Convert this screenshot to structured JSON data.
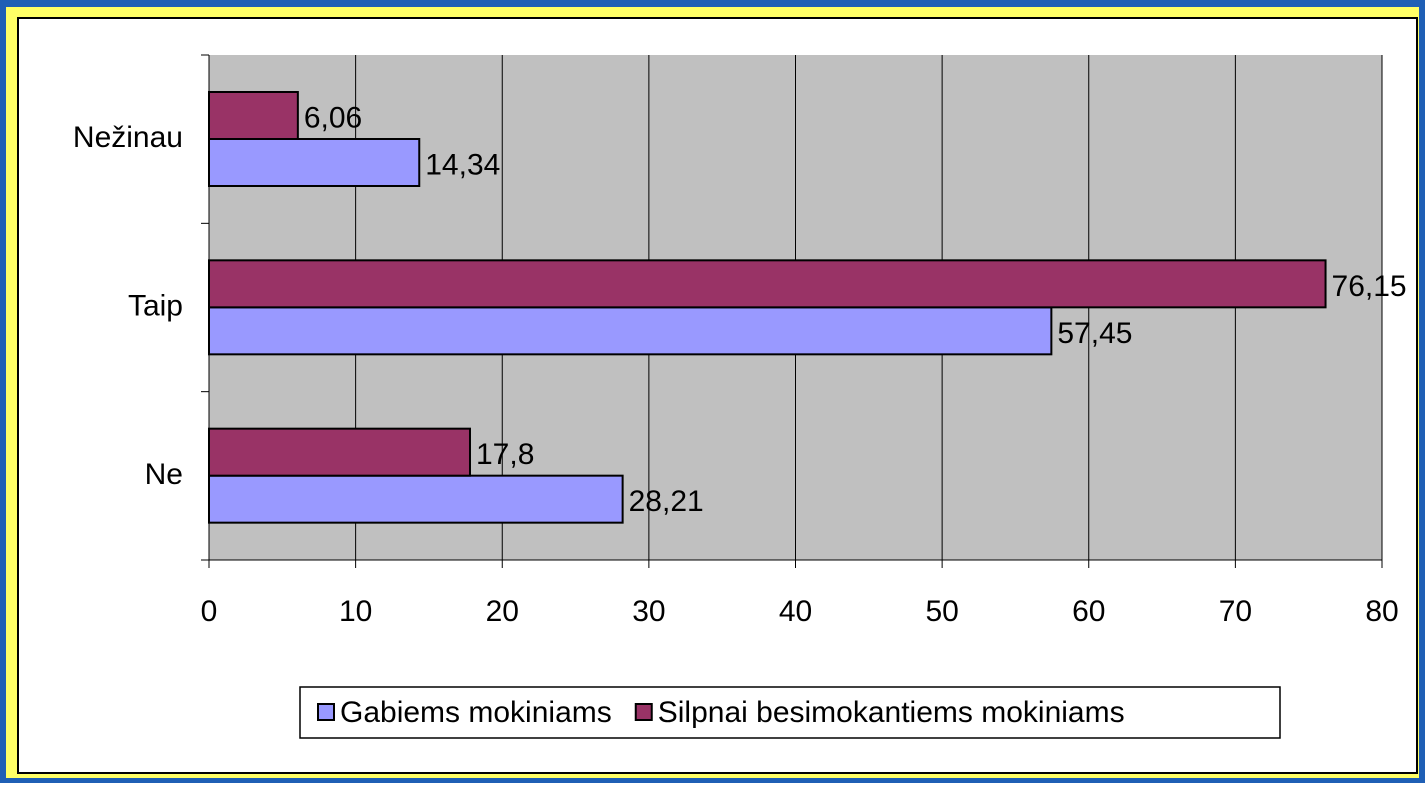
{
  "chart_data": {
    "type": "hbar",
    "categories": [
      "Ne",
      "Taip",
      "Nežinau"
    ],
    "series": [
      {
        "name": "Gabiems mokiniams",
        "color": "#9999ff",
        "values": [
          28.21,
          57.45,
          14.34
        ],
        "value_labels": [
          "28,21",
          "57,45",
          "14,34"
        ]
      },
      {
        "name": "Silpnai besimokantiems mokiniams",
        "color": "#993366",
        "values": [
          17.8,
          76.15,
          6.06
        ],
        "value_labels": [
          "17,8",
          "76,15",
          "6,06"
        ]
      }
    ],
    "xlim": [
      0,
      80
    ],
    "xticks": [
      0,
      10,
      20,
      30,
      40,
      50,
      60,
      70,
      80
    ],
    "grid": true,
    "legend": "bottom"
  }
}
